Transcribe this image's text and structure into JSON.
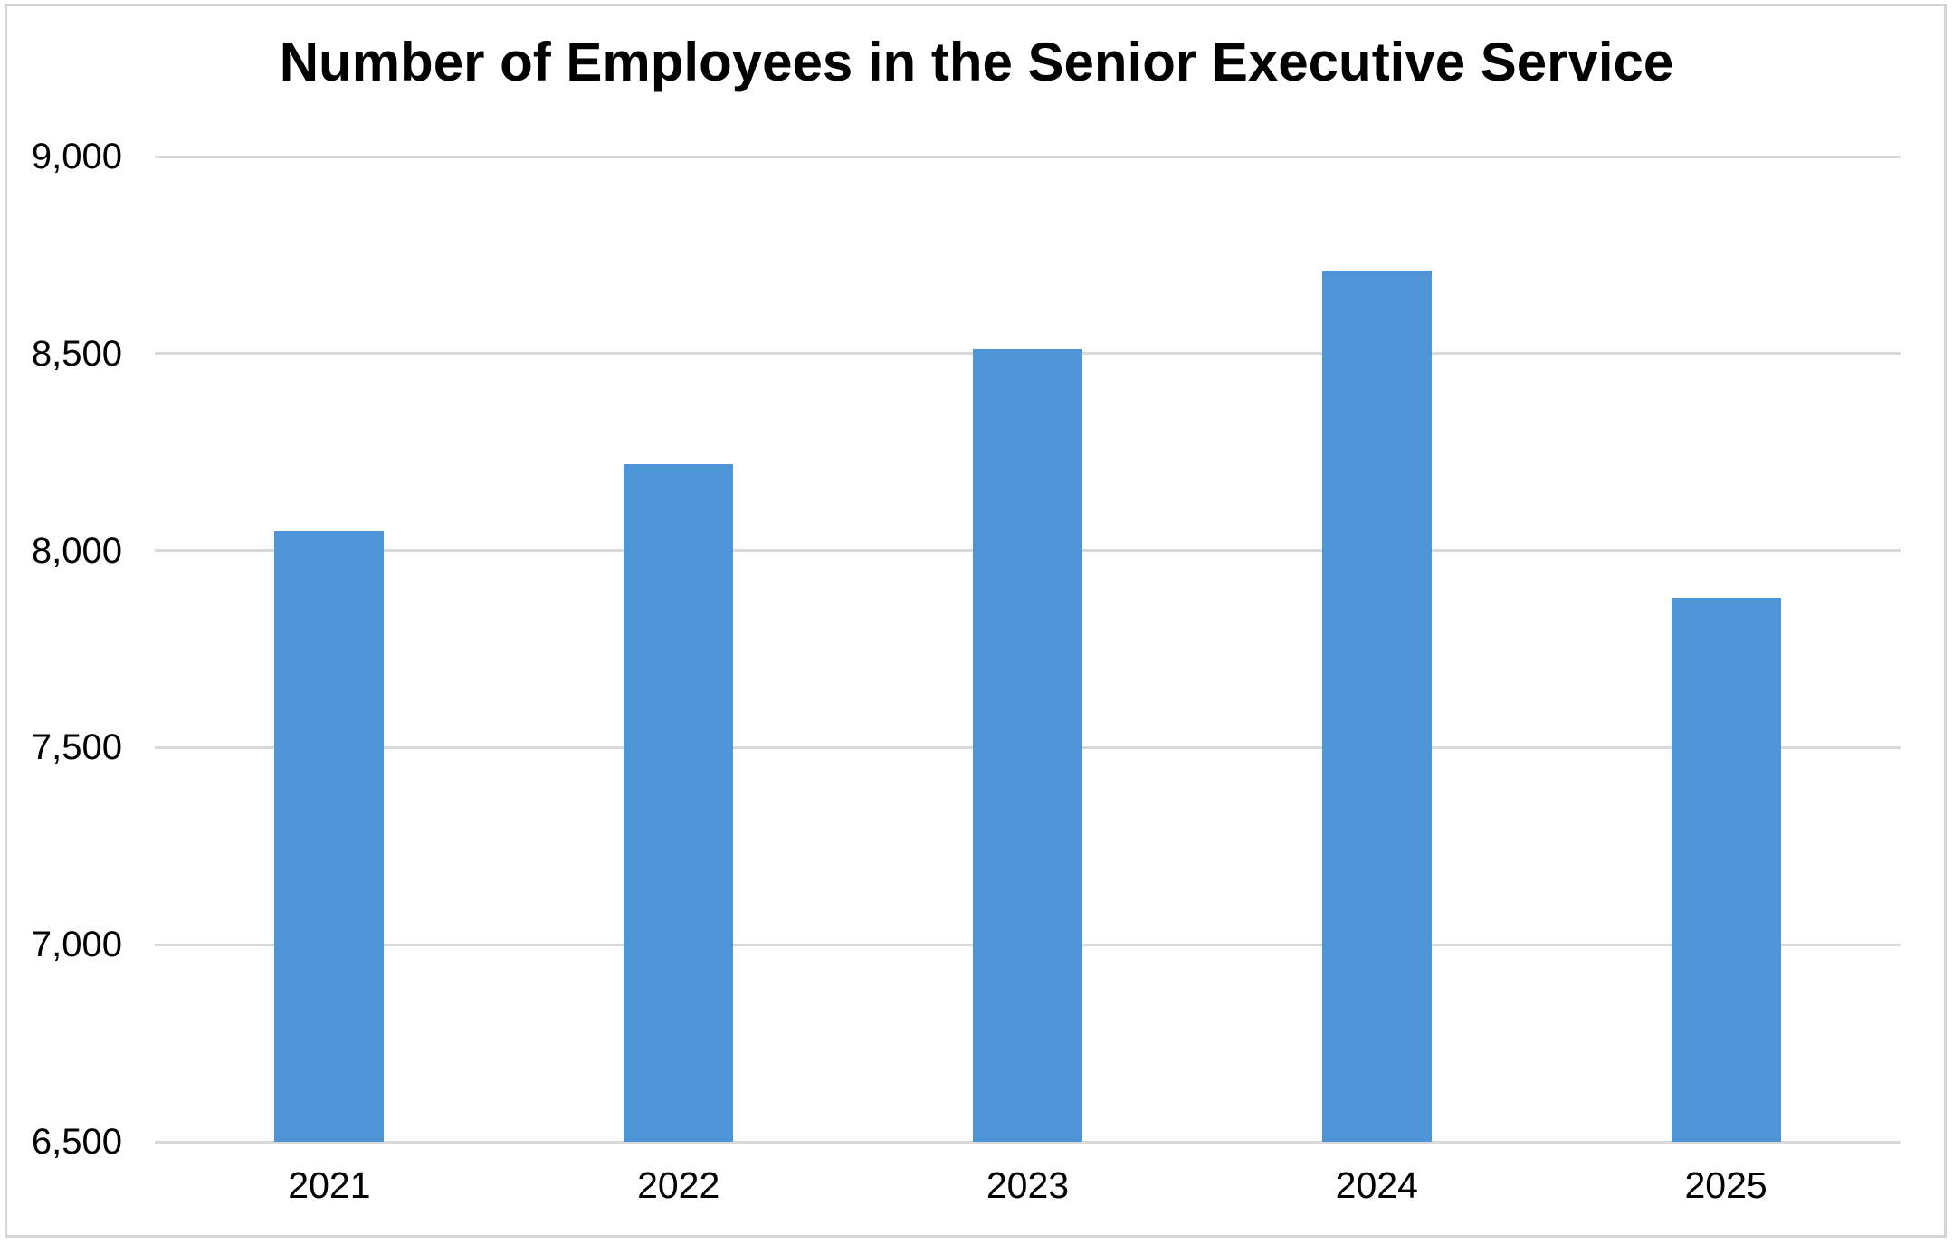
{
  "window": {
    "background_color": "#ffffff",
    "frame_border_color": "#d6d6d6"
  },
  "chart_data": {
    "type": "bar",
    "title": "Number of Employees in the Senior Executive Service",
    "xlabel": "",
    "ylabel": "",
    "categories": [
      "2021",
      "2022",
      "2023",
      "2024",
      "2025"
    ],
    "values": [
      8050,
      8220,
      8510,
      8710,
      7880
    ],
    "ylim": [
      6500,
      9000
    ],
    "yticks": [
      {
        "value": 9000,
        "label": "9,000"
      },
      {
        "value": 8500,
        "label": "8,500"
      },
      {
        "value": 8000,
        "label": "8,000"
      },
      {
        "value": 7500,
        "label": "7,500"
      },
      {
        "value": 7000,
        "label": "7,000"
      },
      {
        "value": 6500,
        "label": "6,500"
      }
    ],
    "grid": "horizontal",
    "legend_position": "none",
    "bar_color": "#4e95d8",
    "gridline_color": "#d9d9d9",
    "text_color": "#000000",
    "bar_width_fraction": 0.314
  }
}
